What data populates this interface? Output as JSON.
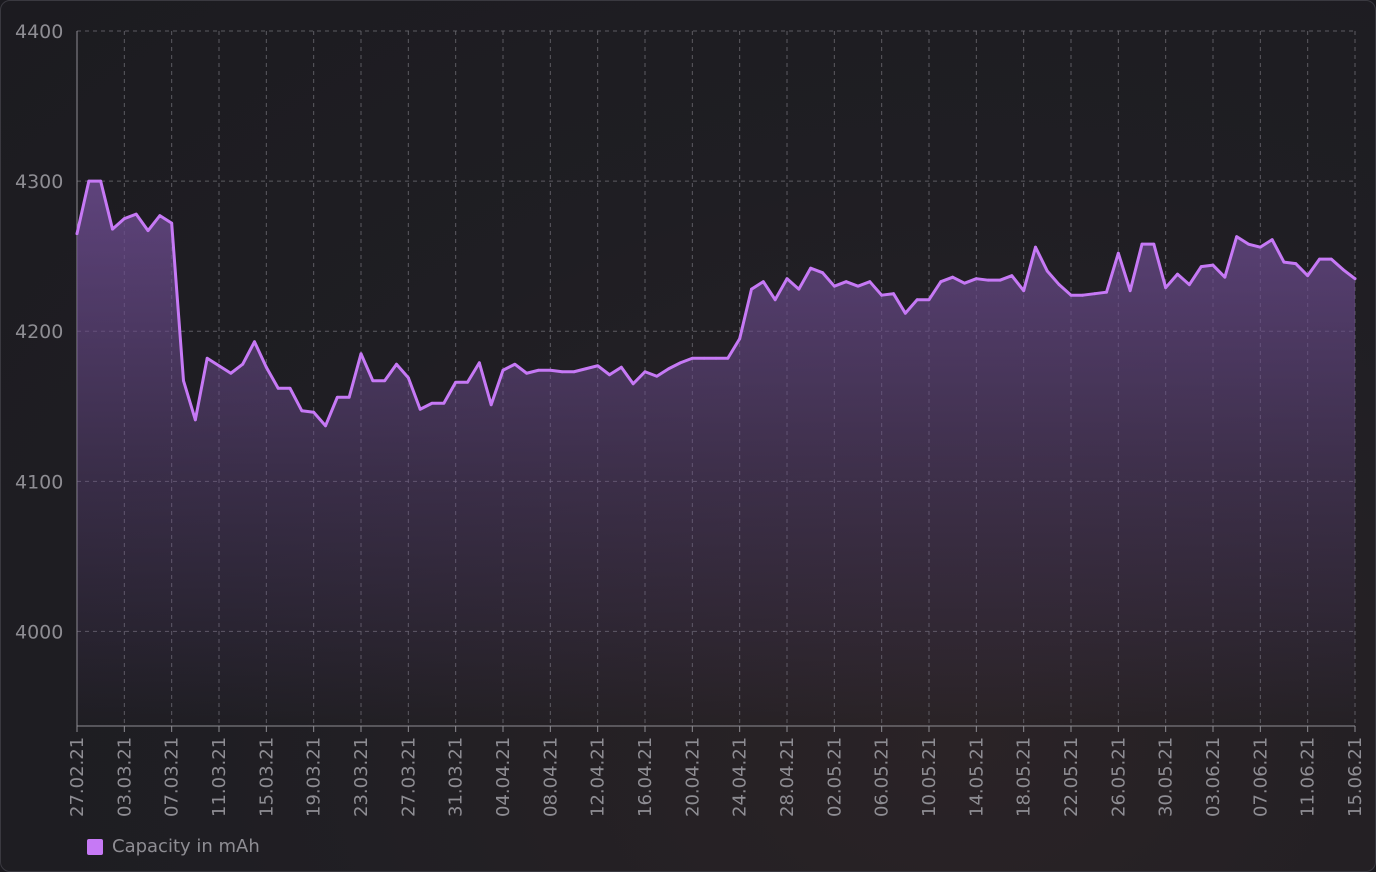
{
  "colors": {
    "line": "#c679f5",
    "fill_top": "#6a4a8c",
    "grid": "#6c6b72",
    "axis": "#8e8d93"
  },
  "legend": {
    "label": "Capacity in mAh",
    "color": "#c679f5"
  },
  "chart_data": {
    "type": "area",
    "title": "",
    "xlabel": "",
    "ylabel": "",
    "ylim": [
      3937,
      4400
    ],
    "yticks": [
      4000,
      4100,
      4200,
      4300,
      4400
    ],
    "x_start": "2021-02-27",
    "x_end": "2021-06-15",
    "xtick_labels": [
      "27.02.21",
      "03.03.21",
      "07.03.21",
      "11.03.21",
      "15.03.21",
      "19.03.21",
      "23.03.21",
      "27.03.21",
      "31.03.21",
      "04.04.21",
      "08.04.21",
      "12.04.21",
      "16.04.21",
      "20.04.21",
      "24.04.21",
      "28.04.21",
      "02.05.21",
      "06.05.21",
      "10.05.21",
      "14.05.21",
      "18.05.21",
      "22.05.21",
      "26.05.21",
      "30.05.21",
      "03.06.21",
      "07.06.21",
      "11.06.21",
      "15.06.21"
    ],
    "grid": true,
    "legend_position": "bottom-left",
    "series": [
      {
        "name": "Capacity in mAh",
        "x": [
          "2021-02-27",
          "2021-02-28",
          "2021-03-01",
          "2021-03-02",
          "2021-03-03",
          "2021-03-04",
          "2021-03-05",
          "2021-03-06",
          "2021-03-07",
          "2021-03-08",
          "2021-03-09",
          "2021-03-10",
          "2021-03-11",
          "2021-03-12",
          "2021-03-13",
          "2021-03-14",
          "2021-03-15",
          "2021-03-16",
          "2021-03-17",
          "2021-03-18",
          "2021-03-19",
          "2021-03-20",
          "2021-03-21",
          "2021-03-22",
          "2021-03-23",
          "2021-03-24",
          "2021-03-25",
          "2021-03-26",
          "2021-03-27",
          "2021-03-28",
          "2021-03-29",
          "2021-03-30",
          "2021-03-31",
          "2021-04-01",
          "2021-04-02",
          "2021-04-03",
          "2021-04-04",
          "2021-04-05",
          "2021-04-06",
          "2021-04-07",
          "2021-04-08",
          "2021-04-09",
          "2021-04-10",
          "2021-04-11",
          "2021-04-12",
          "2021-04-13",
          "2021-04-14",
          "2021-04-15",
          "2021-04-16",
          "2021-04-17",
          "2021-04-18",
          "2021-04-19",
          "2021-04-20",
          "2021-04-21",
          "2021-04-22",
          "2021-04-23",
          "2021-04-24",
          "2021-04-25",
          "2021-04-26",
          "2021-04-27",
          "2021-04-28",
          "2021-04-29",
          "2021-04-30",
          "2021-05-01",
          "2021-05-02",
          "2021-05-03",
          "2021-05-04",
          "2021-05-05",
          "2021-05-06",
          "2021-05-07",
          "2021-05-08",
          "2021-05-09",
          "2021-05-10",
          "2021-05-11",
          "2021-05-12",
          "2021-05-13",
          "2021-05-14",
          "2021-05-15",
          "2021-05-16",
          "2021-05-17",
          "2021-05-18",
          "2021-05-19",
          "2021-05-20",
          "2021-05-21",
          "2021-05-22",
          "2021-05-23",
          "2021-05-24",
          "2021-05-25",
          "2021-05-26",
          "2021-05-27",
          "2021-05-28",
          "2021-05-29",
          "2021-05-30",
          "2021-05-31",
          "2021-06-01",
          "2021-06-02",
          "2021-06-03",
          "2021-06-04",
          "2021-06-05",
          "2021-06-06",
          "2021-06-07",
          "2021-06-08",
          "2021-06-09",
          "2021-06-10",
          "2021-06-11",
          "2021-06-12",
          "2021-06-13",
          "2021-06-14",
          "2021-06-15"
        ],
        "values": [
          4265,
          4300,
          4300,
          4268,
          4275,
          4278,
          4267,
          4277,
          4272,
          4167,
          4141,
          4182,
          4177,
          4172,
          4178,
          4193,
          4176,
          4162,
          4162,
          4147,
          4146,
          4137,
          4156,
          4156,
          4185,
          4167,
          4167,
          4178,
          4169,
          4148,
          4152,
          4152,
          4166,
          4166,
          4179,
          4151,
          4174,
          4178,
          4172,
          4174,
          4174,
          4173,
          4173,
          4175,
          4177,
          4171,
          4176,
          4165,
          4173,
          4170,
          4175,
          4179,
          4182,
          4182,
          4182,
          4182,
          4195,
          4228,
          4233,
          4221,
          4235,
          4228,
          4242,
          4239,
          4230,
          4233,
          4230,
          4233,
          4224,
          4225,
          4212,
          4221,
          4221,
          4233,
          4236,
          4232,
          4235,
          4234,
          4234,
          4237,
          4227,
          4256,
          4240,
          4231,
          4224,
          4224,
          4225,
          4226,
          4252,
          4227,
          4258,
          4258,
          4229,
          4238,
          4231,
          4243,
          4244,
          4236,
          4263,
          4258,
          4256,
          4261,
          4246,
          4245,
          4237,
          4248,
          4248,
          4241,
          4235
        ]
      }
    ]
  }
}
